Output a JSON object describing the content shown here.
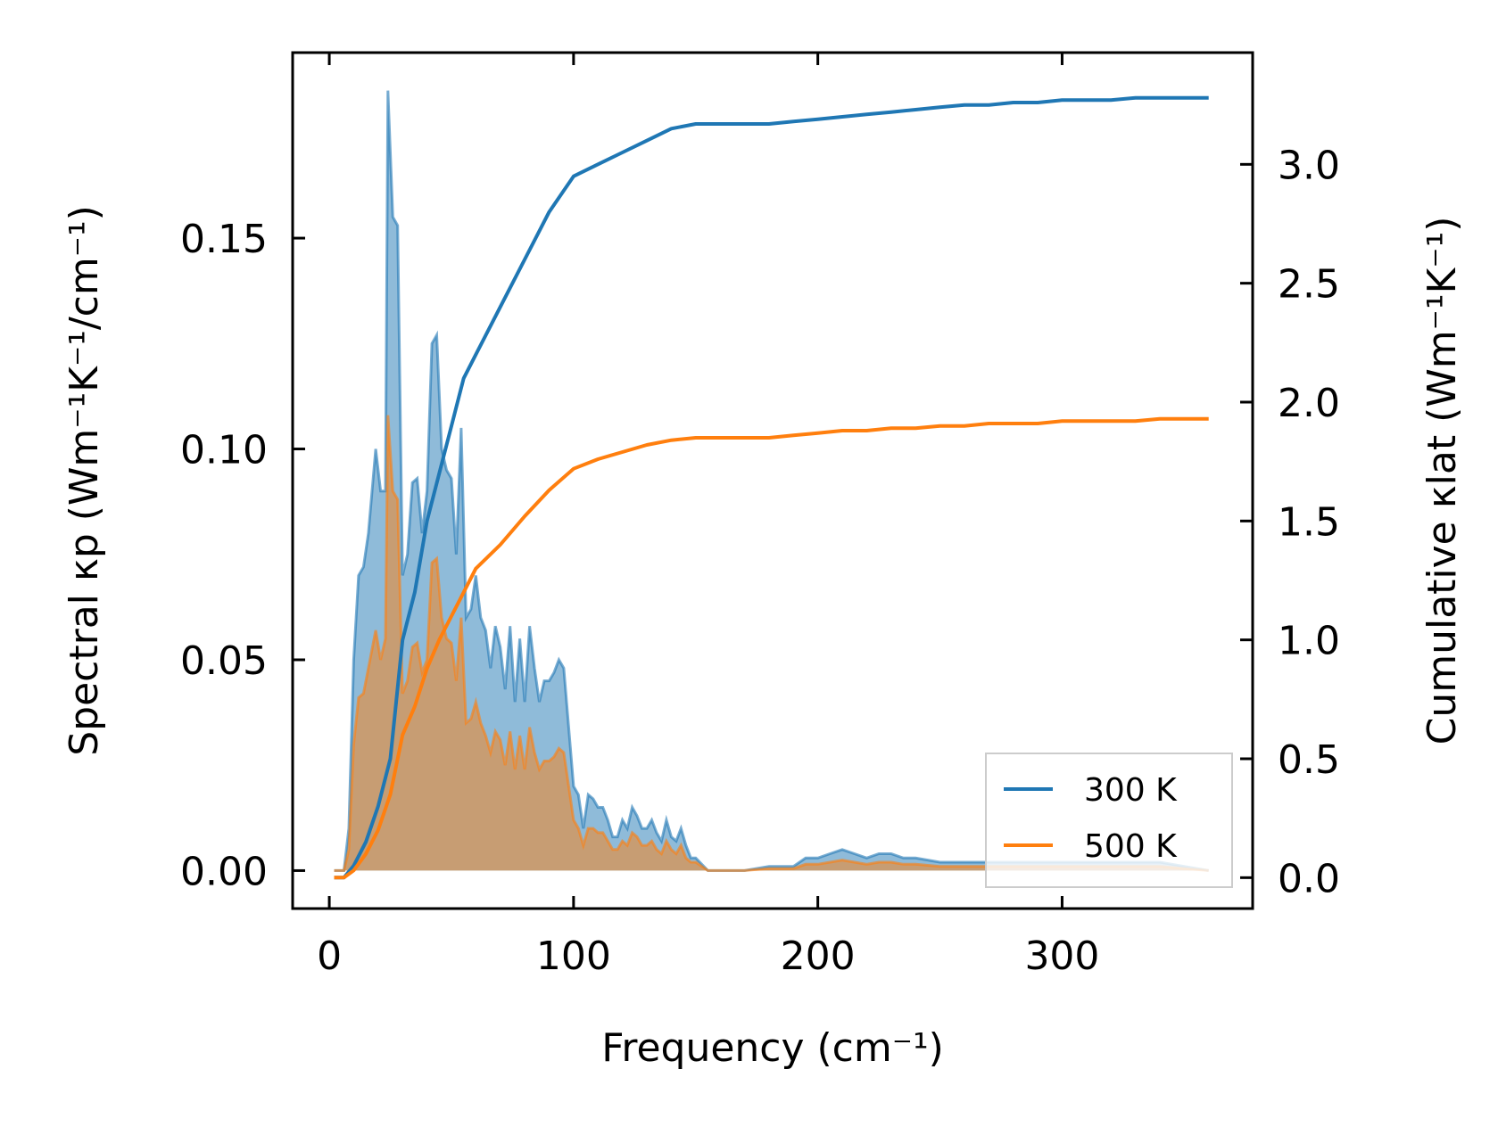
{
  "chart_data": {
    "type": "line",
    "xlabel": "Frequency (cm⁻¹)",
    "ylabel_left": "Spectral κp (Wm⁻¹K⁻¹/cm⁻¹)",
    "ylabel_right": "Cumulative κlat (Wm⁻¹K⁻¹)",
    "xlim": [
      -15,
      378
    ],
    "ylim_left": [
      -0.009,
      0.194
    ],
    "ylim_right": [
      -0.13,
      3.47
    ],
    "x_ticks": [
      "0",
      "100",
      "200",
      "300"
    ],
    "y_left_ticks": [
      "0.00",
      "0.05",
      "0.10",
      "0.15"
    ],
    "y_right_ticks": [
      "0.0",
      "0.5",
      "1.0",
      "1.5",
      "2.0",
      "2.5",
      "3.0"
    ],
    "legend": {
      "placement": "lower-right",
      "entries": [
        "300 K",
        "500 K"
      ]
    },
    "grid": false,
    "colors": {
      "300 K": "#1f77b4",
      "500 K": "#ff7f0e"
    },
    "spectral_series": [
      {
        "name": "300 K",
        "axis": "left",
        "fill_alpha": 0.5,
        "points": [
          [
            2,
            0
          ],
          [
            6,
            0
          ],
          [
            8,
            0.01
          ],
          [
            10,
            0.05
          ],
          [
            12,
            0.07
          ],
          [
            14,
            0.072
          ],
          [
            16,
            0.08
          ],
          [
            19,
            0.1
          ],
          [
            21,
            0.09
          ],
          [
            23,
            0.09
          ],
          [
            24,
            0.185
          ],
          [
            26,
            0.155
          ],
          [
            28,
            0.153
          ],
          [
            30,
            0.07
          ],
          [
            32,
            0.075
          ],
          [
            34,
            0.092
          ],
          [
            36,
            0.093
          ],
          [
            38,
            0.08
          ],
          [
            40,
            0.09
          ],
          [
            42,
            0.125
          ],
          [
            44,
            0.127
          ],
          [
            46,
            0.1
          ],
          [
            48,
            0.095
          ],
          [
            50,
            0.093
          ],
          [
            52,
            0.075
          ],
          [
            54,
            0.105
          ],
          [
            56,
            0.06
          ],
          [
            58,
            0.062
          ],
          [
            60,
            0.07
          ],
          [
            62,
            0.06
          ],
          [
            64,
            0.057
          ],
          [
            66,
            0.048
          ],
          [
            68,
            0.058
          ],
          [
            70,
            0.053
          ],
          [
            72,
            0.043
          ],
          [
            74,
            0.058
          ],
          [
            76,
            0.04
          ],
          [
            78,
            0.055
          ],
          [
            80,
            0.04
          ],
          [
            82,
            0.058
          ],
          [
            84,
            0.048
          ],
          [
            86,
            0.04
          ],
          [
            88,
            0.045
          ],
          [
            90,
            0.045
          ],
          [
            92,
            0.047
          ],
          [
            94,
            0.05
          ],
          [
            96,
            0.048
          ],
          [
            100,
            0.02
          ],
          [
            102,
            0.018
          ],
          [
            104,
            0.01
          ],
          [
            106,
            0.018
          ],
          [
            108,
            0.017
          ],
          [
            110,
            0.015
          ],
          [
            112,
            0.015
          ],
          [
            114,
            0.012
          ],
          [
            116,
            0.008
          ],
          [
            118,
            0.008
          ],
          [
            120,
            0.012
          ],
          [
            122,
            0.01
          ],
          [
            124,
            0.015
          ],
          [
            126,
            0.013
          ],
          [
            128,
            0.01
          ],
          [
            130,
            0.01
          ],
          [
            132,
            0.012
          ],
          [
            134,
            0.009
          ],
          [
            136,
            0.007
          ],
          [
            138,
            0.012
          ],
          [
            140,
            0.008
          ],
          [
            142,
            0.007
          ],
          [
            144,
            0.01
          ],
          [
            146,
            0.006
          ],
          [
            148,
            0.003
          ],
          [
            150,
            0.003
          ],
          [
            155,
            0
          ],
          [
            170,
            0
          ],
          [
            180,
            0.001
          ],
          [
            190,
            0.001
          ],
          [
            195,
            0.003
          ],
          [
            200,
            0.003
          ],
          [
            205,
            0.004
          ],
          [
            210,
            0.005
          ],
          [
            215,
            0.004
          ],
          [
            220,
            0.003
          ],
          [
            225,
            0.004
          ],
          [
            230,
            0.004
          ],
          [
            235,
            0.003
          ],
          [
            240,
            0.003
          ],
          [
            250,
            0.002
          ],
          [
            260,
            0.002
          ],
          [
            270,
            0.002
          ],
          [
            280,
            0.002
          ],
          [
            290,
            0.002
          ],
          [
            300,
            0.002
          ],
          [
            310,
            0.002
          ],
          [
            320,
            0.002
          ],
          [
            330,
            0.002
          ],
          [
            340,
            0.002
          ],
          [
            350,
            0.001
          ],
          [
            360,
            0
          ]
        ]
      },
      {
        "name": "500 K",
        "axis": "left",
        "fill_alpha": 0.5,
        "points": [
          [
            2,
            0
          ],
          [
            6,
            0
          ],
          [
            8,
            0.005
          ],
          [
            10,
            0.03
          ],
          [
            12,
            0.041
          ],
          [
            14,
            0.042
          ],
          [
            16,
            0.048
          ],
          [
            19,
            0.057
          ],
          [
            21,
            0.05
          ],
          [
            23,
            0.055
          ],
          [
            24,
            0.108
          ],
          [
            26,
            0.09
          ],
          [
            28,
            0.088
          ],
          [
            30,
            0.042
          ],
          [
            32,
            0.045
          ],
          [
            34,
            0.053
          ],
          [
            36,
            0.054
          ],
          [
            38,
            0.047
          ],
          [
            40,
            0.05
          ],
          [
            42,
            0.073
          ],
          [
            44,
            0.074
          ],
          [
            46,
            0.06
          ],
          [
            48,
            0.055
          ],
          [
            50,
            0.054
          ],
          [
            52,
            0.045
          ],
          [
            54,
            0.06
          ],
          [
            56,
            0.035
          ],
          [
            58,
            0.036
          ],
          [
            60,
            0.04
          ],
          [
            62,
            0.035
          ],
          [
            64,
            0.032
          ],
          [
            66,
            0.028
          ],
          [
            68,
            0.033
          ],
          [
            70,
            0.031
          ],
          [
            72,
            0.025
          ],
          [
            74,
            0.033
          ],
          [
            76,
            0.024
          ],
          [
            78,
            0.032
          ],
          [
            80,
            0.024
          ],
          [
            82,
            0.034
          ],
          [
            84,
            0.028
          ],
          [
            86,
            0.024
          ],
          [
            88,
            0.026
          ],
          [
            90,
            0.026
          ],
          [
            92,
            0.027
          ],
          [
            94,
            0.029
          ],
          [
            96,
            0.028
          ],
          [
            100,
            0.012
          ],
          [
            102,
            0.01
          ],
          [
            104,
            0.006
          ],
          [
            106,
            0.01
          ],
          [
            108,
            0.01
          ],
          [
            110,
            0.009
          ],
          [
            112,
            0.009
          ],
          [
            114,
            0.007
          ],
          [
            116,
            0.005
          ],
          [
            118,
            0.005
          ],
          [
            120,
            0.007
          ],
          [
            122,
            0.006
          ],
          [
            124,
            0.009
          ],
          [
            126,
            0.008
          ],
          [
            128,
            0.006
          ],
          [
            130,
            0.006
          ],
          [
            132,
            0.007
          ],
          [
            134,
            0.005
          ],
          [
            136,
            0.004
          ],
          [
            138,
            0.007
          ],
          [
            140,
            0.005
          ],
          [
            142,
            0.004
          ],
          [
            144,
            0.006
          ],
          [
            146,
            0.003
          ],
          [
            148,
            0.002
          ],
          [
            150,
            0.002
          ],
          [
            155,
            0
          ],
          [
            170,
            0
          ],
          [
            180,
            0.0005
          ],
          [
            190,
            0.0005
          ],
          [
            195,
            0.0015
          ],
          [
            200,
            0.0015
          ],
          [
            205,
            0.002
          ],
          [
            210,
            0.0025
          ],
          [
            215,
            0.002
          ],
          [
            220,
            0.0015
          ],
          [
            225,
            0.002
          ],
          [
            230,
            0.002
          ],
          [
            235,
            0.0015
          ],
          [
            240,
            0.0015
          ],
          [
            250,
            0.001
          ],
          [
            260,
            0.001
          ],
          [
            270,
            0.001
          ],
          [
            280,
            0.001
          ],
          [
            290,
            0.001
          ],
          [
            300,
            0.001
          ],
          [
            310,
            0.001
          ],
          [
            320,
            0.001
          ],
          [
            330,
            0.001
          ],
          [
            340,
            0.001
          ],
          [
            350,
            0.0005
          ],
          [
            360,
            0
          ]
        ]
      }
    ],
    "cumulative_series": [
      {
        "name": "300 K",
        "axis": "right",
        "points": [
          [
            2,
            0
          ],
          [
            6,
            0
          ],
          [
            10,
            0.05
          ],
          [
            15,
            0.15
          ],
          [
            20,
            0.3
          ],
          [
            25,
            0.5
          ],
          [
            30,
            1.0
          ],
          [
            35,
            1.2
          ],
          [
            40,
            1.5
          ],
          [
            45,
            1.7
          ],
          [
            50,
            1.9
          ],
          [
            55,
            2.1
          ],
          [
            60,
            2.2
          ],
          [
            70,
            2.4
          ],
          [
            80,
            2.6
          ],
          [
            90,
            2.8
          ],
          [
            100,
            2.95
          ],
          [
            110,
            3.0
          ],
          [
            120,
            3.05
          ],
          [
            130,
            3.1
          ],
          [
            140,
            3.15
          ],
          [
            150,
            3.17
          ],
          [
            160,
            3.17
          ],
          [
            170,
            3.17
          ],
          [
            180,
            3.17
          ],
          [
            190,
            3.18
          ],
          [
            200,
            3.19
          ],
          [
            210,
            3.2
          ],
          [
            220,
            3.21
          ],
          [
            230,
            3.22
          ],
          [
            240,
            3.23
          ],
          [
            250,
            3.24
          ],
          [
            260,
            3.25
          ],
          [
            270,
            3.25
          ],
          [
            280,
            3.26
          ],
          [
            290,
            3.26
          ],
          [
            300,
            3.27
          ],
          [
            310,
            3.27
          ],
          [
            320,
            3.27
          ],
          [
            330,
            3.28
          ],
          [
            340,
            3.28
          ],
          [
            350,
            3.28
          ],
          [
            360,
            3.28
          ]
        ]
      },
      {
        "name": "500 K",
        "axis": "right",
        "points": [
          [
            2,
            0
          ],
          [
            6,
            0
          ],
          [
            10,
            0.03
          ],
          [
            15,
            0.1
          ],
          [
            20,
            0.2
          ],
          [
            25,
            0.35
          ],
          [
            30,
            0.6
          ],
          [
            35,
            0.72
          ],
          [
            40,
            0.88
          ],
          [
            45,
            1.0
          ],
          [
            50,
            1.1
          ],
          [
            55,
            1.2
          ],
          [
            60,
            1.3
          ],
          [
            70,
            1.4
          ],
          [
            80,
            1.52
          ],
          [
            90,
            1.63
          ],
          [
            100,
            1.72
          ],
          [
            110,
            1.76
          ],
          [
            120,
            1.79
          ],
          [
            130,
            1.82
          ],
          [
            140,
            1.84
          ],
          [
            150,
            1.85
          ],
          [
            160,
            1.85
          ],
          [
            170,
            1.85
          ],
          [
            180,
            1.85
          ],
          [
            190,
            1.86
          ],
          [
            200,
            1.87
          ],
          [
            210,
            1.88
          ],
          [
            220,
            1.88
          ],
          [
            230,
            1.89
          ],
          [
            240,
            1.89
          ],
          [
            250,
            1.9
          ],
          [
            260,
            1.9
          ],
          [
            270,
            1.91
          ],
          [
            280,
            1.91
          ],
          [
            290,
            1.91
          ],
          [
            300,
            1.92
          ],
          [
            310,
            1.92
          ],
          [
            320,
            1.92
          ],
          [
            330,
            1.92
          ],
          [
            340,
            1.93
          ],
          [
            350,
            1.93
          ],
          [
            360,
            1.93
          ]
        ]
      }
    ]
  }
}
